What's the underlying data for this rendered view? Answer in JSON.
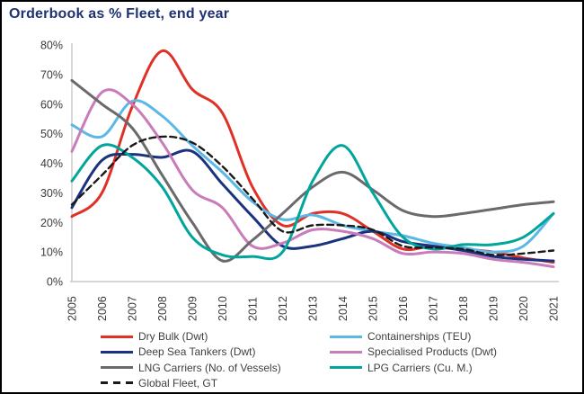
{
  "title": "Orderbook as % Fleet, end year",
  "accent_color": "#1e3272",
  "axis": {
    "line_color": "#c9c9c9",
    "label_color": "#3a3a3a"
  },
  "chart_data": {
    "type": "line",
    "title": "Orderbook as % Fleet, end year",
    "xlabel": "",
    "ylabel": "",
    "x": [
      2005,
      2006,
      2007,
      2008,
      2009,
      2010,
      2011,
      2012,
      2013,
      2014,
      2015,
      2016,
      2017,
      2018,
      2019,
      2020,
      2021
    ],
    "y_axis": {
      "min": 0,
      "max": 80,
      "step": 10,
      "tick_suffix": "%"
    },
    "grid": false,
    "legend_position": "bottom",
    "series": [
      {
        "name": "Dry Bulk (Dwt)",
        "color": "#e03127",
        "dash": false,
        "values": [
          22,
          30,
          59,
          78,
          65,
          57,
          32,
          19,
          23,
          23,
          17,
          11,
          12,
          11,
          10,
          8,
          6.5
        ]
      },
      {
        "name": "Containerships (TEU)",
        "color": "#5bb8e6",
        "dash": false,
        "values": [
          53,
          49,
          61,
          56,
          46,
          37,
          27,
          21,
          22.5,
          19,
          17,
          15.5,
          13,
          11.5,
          10,
          12,
          23
        ]
      },
      {
        "name": "Deep Sea Tankers (Dwt)",
        "color": "#1a3280",
        "dash": false,
        "values": [
          25,
          41,
          43,
          42,
          44,
          33,
          22,
          12,
          12,
          14.5,
          17,
          13.5,
          12,
          10.5,
          8.5,
          7.5,
          7
        ]
      },
      {
        "name": "Specialised Products (Dwt)",
        "color": "#c87cba",
        "dash": false,
        "values": [
          44,
          64,
          60,
          47,
          31,
          25,
          12,
          13,
          17.5,
          17,
          14.5,
          9.5,
          10,
          9.5,
          7.5,
          6.5,
          5
        ]
      },
      {
        "name": "LNG Carriers (No. of Vessels)",
        "color": "#6a6a6d",
        "dash": false,
        "values": [
          68,
          60,
          52,
          36,
          20,
          7,
          14,
          23,
          32,
          37,
          31,
          24,
          22,
          23,
          24.5,
          26,
          27
        ]
      },
      {
        "name": "LPG Carriers (Cu. M.)",
        "color": "#00a59b",
        "dash": false,
        "values": [
          34,
          46,
          42,
          32,
          15,
          9,
          8.5,
          10,
          34,
          46,
          30,
          15,
          11,
          12.5,
          12.5,
          15,
          23
        ]
      },
      {
        "name": "Global Fleet, GT",
        "color": "#1a1a1a",
        "dash": true,
        "values": [
          26,
          36,
          46,
          49,
          47,
          39,
          28,
          17,
          19,
          19,
          17.5,
          12,
          11.5,
          11,
          9,
          9.5,
          10.5
        ]
      }
    ],
    "legend_order": [
      "Dry Bulk (Dwt)",
      "Containerships (TEU)",
      "Deep Sea Tankers (Dwt)",
      "Specialised Products (Dwt)",
      "LNG Carriers (No. of Vessels)",
      "LPG Carriers (Cu. M.)",
      "Global Fleet, GT"
    ]
  }
}
